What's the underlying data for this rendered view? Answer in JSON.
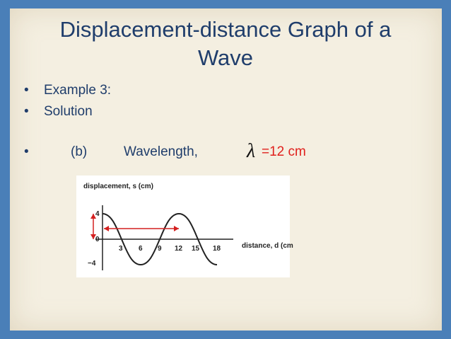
{
  "slide": {
    "title": [
      "Displacement-distance Graph of a",
      "Wave"
    ],
    "bullets": [
      "Example 3:",
      "Solution"
    ],
    "answer": {
      "bullet": "•",
      "part": "(b)",
      "label": "Wavelength,",
      "symbol": "λ",
      "value": "=12 cm"
    },
    "graph": {
      "y_label": "displacement, s (cm)",
      "x_label": "distance, d (cm",
      "x_ticks": [
        "3",
        "6",
        "9",
        "12",
        "15",
        "18"
      ],
      "y_ticks": [
        "4",
        "0",
        "−4"
      ]
    }
  }
}
